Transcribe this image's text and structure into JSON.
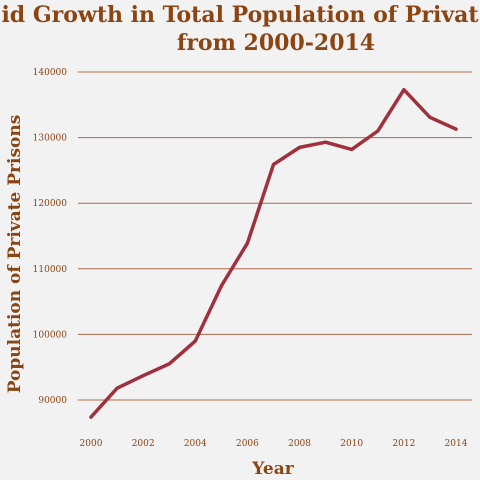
{
  "chart_data": {
    "type": "line",
    "title_line1": "id Growth in Total Population of Privat",
    "title_line2": "from 2000-2014",
    "xlabel": "Year",
    "ylabel": "Population of Private Prisons",
    "x": [
      2000,
      2001,
      2002,
      2003,
      2004,
      2005,
      2006,
      2007,
      2008,
      2009,
      2010,
      2011,
      2012,
      2013,
      2014
    ],
    "series": [
      {
        "values": [
          87400,
          91800,
          93700,
          95500,
          99000,
          107400,
          113900,
          125900,
          128500,
          129300,
          128200,
          131000,
          137300,
          133100,
          131300
        ]
      }
    ],
    "xlim": [
      1999.5,
      2014.5
    ],
    "ylim": [
      85000,
      141000
    ],
    "x_ticks": [
      "2000",
      "2002",
      "2004",
      "2006",
      "2008",
      "2010",
      "2012",
      "2014"
    ],
    "y_ticks": [
      "90000",
      "100000",
      "110000",
      "120000",
      "130000",
      "140000"
    ],
    "grid": "horizontal",
    "line_color": "#a0303c",
    "text_color": "#8b4513",
    "background": "#f3f2f2"
  }
}
